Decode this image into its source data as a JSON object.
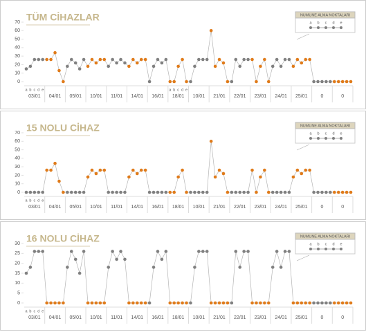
{
  "chart_data": [
    {
      "type": "line",
      "title": "TÜM CİHAZLAR",
      "groups": [
        "03/01",
        "04/01",
        "05/01",
        "10/01",
        "11/01",
        "14/01",
        "16/01",
        "18/01",
        "10/01",
        "21/01",
        "22/01",
        "23/01",
        "24/01",
        "25/01",
        "0",
        "0"
      ],
      "group_colors": [
        "#808080",
        "#e07b1a",
        "#808080",
        "#e07b1a",
        "#808080",
        "#e07b1a",
        "#808080",
        "#e07b1a",
        "#808080",
        "#e07b1a",
        "#808080",
        "#e07b1a",
        "#808080",
        "#e07b1a",
        "#808080",
        "#e07b1a"
      ],
      "categories": [
        "a",
        "b",
        "c",
        "d",
        "e",
        null,
        null,
        null,
        null,
        null,
        null,
        null,
        null,
        null,
        null,
        null,
        null,
        null,
        null,
        null,
        null,
        null,
        null,
        null,
        null,
        null,
        null,
        null,
        null,
        null,
        null,
        null,
        null,
        null,
        null,
        "a",
        "b",
        "c",
        "d",
        "e",
        null,
        null,
        null,
        null,
        null,
        null,
        null,
        null,
        null,
        null,
        null,
        null,
        null,
        null,
        null,
        null,
        null,
        null,
        null,
        null,
        null,
        null,
        null,
        null,
        null,
        null,
        null,
        null,
        null,
        null,
        null,
        null,
        null,
        null,
        null,
        null,
        null,
        null,
        null,
        null
      ],
      "values": [
        15,
        18,
        26,
        26,
        26,
        26,
        26,
        34,
        13,
        0,
        18,
        26,
        22,
        15,
        26,
        18,
        26,
        22,
        26,
        26,
        18,
        26,
        22,
        26,
        22,
        18,
        26,
        22,
        26,
        26,
        0,
        18,
        26,
        22,
        26,
        0,
        0,
        18,
        26,
        0,
        0,
        18,
        26,
        26,
        26,
        60,
        18,
        26,
        22,
        0,
        0,
        26,
        18,
        26,
        26,
        26,
        0,
        18,
        26,
        0,
        18,
        26,
        18,
        26,
        26,
        18,
        26,
        22,
        26,
        26,
        0,
        0,
        0,
        0,
        0,
        0,
        0,
        0,
        0,
        0
      ],
      "ylim": [
        0,
        70
      ],
      "yticks": [
        0,
        10,
        20,
        30,
        40,
        50,
        60,
        70
      ],
      "legend_title": "NUMUNE ALMA NOKTALARI",
      "legend_labels": [
        "a",
        "b",
        "c",
        "d",
        "e"
      ]
    },
    {
      "type": "line",
      "title": "15 NOLU CİHAZ",
      "groups": [
        "03/01",
        "04/01",
        "05/01",
        "10/01",
        "11/01",
        "14/01",
        "16/01",
        "18/01",
        "10/01",
        "21/01",
        "22/01",
        "23/01",
        "24/01",
        "25/01",
        "0",
        "0"
      ],
      "group_colors": [
        "#808080",
        "#e07b1a",
        "#808080",
        "#e07b1a",
        "#808080",
        "#e07b1a",
        "#808080",
        "#e07b1a",
        "#808080",
        "#e07b1a",
        "#808080",
        "#e07b1a",
        "#808080",
        "#e07b1a",
        "#808080",
        "#e07b1a"
      ],
      "categories": [
        "a",
        "b",
        "c",
        "d",
        "e",
        null,
        null,
        null,
        null,
        null,
        null,
        null,
        null,
        null,
        null,
        null,
        null,
        null,
        null,
        null,
        null,
        null,
        null,
        null,
        null,
        null,
        null,
        null,
        null,
        null,
        null,
        null,
        null,
        null,
        null,
        null,
        null,
        null,
        null,
        null,
        null,
        null,
        null,
        null,
        null,
        null,
        null,
        null,
        null,
        null,
        null,
        null,
        null,
        null,
        null,
        null,
        null,
        null,
        null,
        null,
        null,
        null,
        null,
        null,
        null,
        null,
        null,
        null,
        null,
        null,
        null,
        null,
        null,
        null,
        null,
        null,
        null,
        null,
        null,
        null
      ],
      "values": [
        0,
        0,
        0,
        0,
        0,
        26,
        26,
        34,
        13,
        0,
        0,
        0,
        0,
        0,
        0,
        18,
        26,
        22,
        26,
        26,
        0,
        0,
        0,
        0,
        0,
        18,
        26,
        22,
        26,
        26,
        0,
        0,
        0,
        0,
        0,
        0,
        0,
        18,
        26,
        0,
        0,
        0,
        0,
        0,
        0,
        60,
        18,
        26,
        22,
        0,
        0,
        0,
        0,
        0,
        0,
        26,
        0,
        18,
        26,
        0,
        0,
        0,
        0,
        0,
        0,
        18,
        26,
        22,
        26,
        26,
        0,
        0,
        0,
        0,
        0,
        0,
        0,
        0,
        0,
        0
      ],
      "ylim": [
        0,
        70
      ],
      "yticks": [
        0,
        10,
        20,
        30,
        40,
        50,
        60,
        70
      ],
      "legend_title": "NUMUNE ALMA NOKTALARI",
      "legend_labels": [
        "a",
        "b",
        "c",
        "d",
        "e"
      ]
    },
    {
      "type": "line",
      "title": "16 NOLU CİHAZ",
      "groups": [
        "03/01",
        "04/01",
        "05/01",
        "10/01",
        "11/01",
        "14/01",
        "16/01",
        "18/01",
        "10/01",
        "21/01",
        "22/01",
        "23/01",
        "24/01",
        "25/01",
        "0",
        "0"
      ],
      "group_colors": [
        "#808080",
        "#e07b1a",
        "#808080",
        "#e07b1a",
        "#808080",
        "#e07b1a",
        "#808080",
        "#e07b1a",
        "#808080",
        "#e07b1a",
        "#808080",
        "#e07b1a",
        "#808080",
        "#e07b1a",
        "#808080",
        "#e07b1a"
      ],
      "categories": [
        "a",
        "b",
        "c",
        "d",
        "e",
        null,
        null,
        null,
        null,
        null,
        null,
        null,
        null,
        null,
        null,
        null,
        null,
        null,
        null,
        null,
        null,
        null,
        null,
        null,
        null,
        null,
        null,
        null,
        null,
        null,
        null,
        null,
        null,
        null,
        null,
        null,
        null,
        null,
        null,
        null,
        null,
        null,
        null,
        null,
        null,
        null,
        null,
        null,
        null,
        null,
        null,
        null,
        null,
        null,
        null,
        null,
        null,
        null,
        null,
        null,
        null,
        null,
        null,
        null,
        null,
        null,
        null,
        null,
        null,
        null,
        null,
        null,
        null,
        null,
        null,
        null,
        null,
        null,
        null,
        null
      ],
      "values": [
        15,
        18,
        26,
        26,
        26,
        0,
        0,
        0,
        0,
        0,
        18,
        26,
        22,
        15,
        26,
        0,
        0,
        0,
        0,
        0,
        18,
        26,
        22,
        26,
        22,
        0,
        0,
        0,
        0,
        0,
        0,
        18,
        26,
        22,
        26,
        0,
        0,
        0,
        0,
        0,
        0,
        18,
        26,
        26,
        26,
        0,
        0,
        0,
        0,
        0,
        0,
        26,
        18,
        26,
        26,
        0,
        0,
        0,
        0,
        0,
        18,
        26,
        18,
        26,
        26,
        0,
        0,
        0,
        0,
        0,
        0,
        0,
        0,
        0,
        0,
        0,
        0,
        0,
        0,
        0
      ],
      "ylim": [
        0,
        30
      ],
      "yticks": [
        0,
        5,
        10,
        15,
        20,
        25,
        30
      ],
      "legend_title": "NUMUNE ALMA NOKTALARI",
      "legend_labels": [
        "a",
        "b",
        "c",
        "d",
        "e"
      ]
    }
  ]
}
